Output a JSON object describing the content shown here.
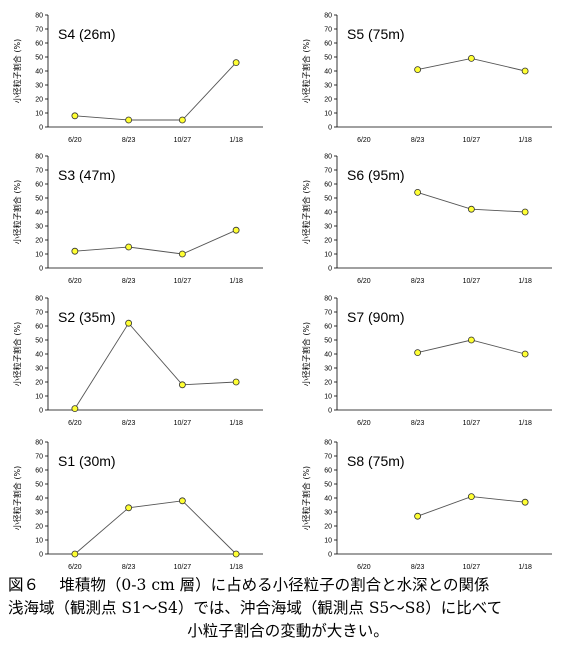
{
  "caption": {
    "line1": "図６　 堆積物（0-3 cm 層）に占める小径粒子の割合と水深との関係",
    "line2": "浅海域（観測点 S1〜S4）では、沖合海域（観測点 S5〜S8）に比べて",
    "line3": "小粒子割合の変動が大きい。"
  },
  "chart_data": [
    {
      "type": "line",
      "title": "S4 (26m)",
      "xlabel": "",
      "ylabel": "小径粒子割合 (%)",
      "categories": [
        "6/20",
        "8/23",
        "10/27",
        "1/18"
      ],
      "values": [
        8,
        5,
        5,
        46
      ],
      "ylim": [
        0,
        80
      ],
      "yticks": [
        0,
        10,
        20,
        30,
        40,
        50,
        60,
        70,
        80
      ],
      "grid": false
    },
    {
      "type": "line",
      "title": "S5 (75m)",
      "xlabel": "",
      "ylabel": "小径粒子割合 (%)",
      "categories": [
        "6/20",
        "8/23",
        "10/27",
        "1/18"
      ],
      "values": [
        null,
        41,
        49,
        40
      ],
      "ylim": [
        0,
        80
      ],
      "yticks": [
        0,
        10,
        20,
        30,
        40,
        50,
        60,
        70,
        80
      ],
      "grid": false
    },
    {
      "type": "line",
      "title": "S3 (47m)",
      "xlabel": "",
      "ylabel": "小径粒子割合 (%)",
      "categories": [
        "6/20",
        "8/23",
        "10/27",
        "1/18"
      ],
      "values": [
        12,
        15,
        10,
        27
      ],
      "ylim": [
        0,
        80
      ],
      "yticks": [
        0,
        10,
        20,
        30,
        40,
        50,
        60,
        70,
        80
      ],
      "grid": false
    },
    {
      "type": "line",
      "title": "S6 (95m)",
      "xlabel": "",
      "ylabel": "小径粒子割合 (%)",
      "categories": [
        "6/20",
        "8/23",
        "10/27",
        "1/18"
      ],
      "values": [
        null,
        54,
        42,
        40
      ],
      "ylim": [
        0,
        80
      ],
      "yticks": [
        0,
        10,
        20,
        30,
        40,
        50,
        60,
        70,
        80
      ],
      "grid": false
    },
    {
      "type": "line",
      "title": "S2 (35m)",
      "xlabel": "",
      "ylabel": "小径粒子割合 (%)",
      "categories": [
        "6/20",
        "8/23",
        "10/27",
        "1/18"
      ],
      "values": [
        1,
        62,
        18,
        20
      ],
      "ylim": [
        0,
        80
      ],
      "yticks": [
        0,
        10,
        20,
        30,
        40,
        50,
        60,
        70,
        80
      ],
      "grid": false
    },
    {
      "type": "line",
      "title": "S7 (90m)",
      "xlabel": "",
      "ylabel": "小径粒子割合 (%)",
      "categories": [
        "6/20",
        "8/23",
        "10/27",
        "1/18"
      ],
      "values": [
        null,
        41,
        50,
        40
      ],
      "ylim": [
        0,
        80
      ],
      "yticks": [
        0,
        10,
        20,
        30,
        40,
        50,
        60,
        70,
        80
      ],
      "grid": false
    },
    {
      "type": "line",
      "title": "S1 (30m)",
      "xlabel": "",
      "ylabel": "小径粒子割合 (%)",
      "categories": [
        "6/20",
        "8/23",
        "10/27",
        "1/18"
      ],
      "values": [
        0,
        33,
        38,
        0
      ],
      "ylim": [
        0,
        80
      ],
      "yticks": [
        0,
        10,
        20,
        30,
        40,
        50,
        60,
        70,
        80
      ],
      "grid": false
    },
    {
      "type": "line",
      "title": "S8 (75m)",
      "xlabel": "",
      "ylabel": "小径粒子割合 (%)",
      "categories": [
        "6/20",
        "8/23",
        "10/27",
        "1/18"
      ],
      "values": [
        null,
        27,
        41,
        37
      ],
      "ylim": [
        0,
        80
      ],
      "yticks": [
        0,
        10,
        20,
        30,
        40,
        50,
        60,
        70,
        80
      ],
      "grid": false
    }
  ],
  "colors": {
    "marker_fill": "#ffff33",
    "marker_stroke": "#333333",
    "line": "#555555",
    "axis": "#000000"
  }
}
